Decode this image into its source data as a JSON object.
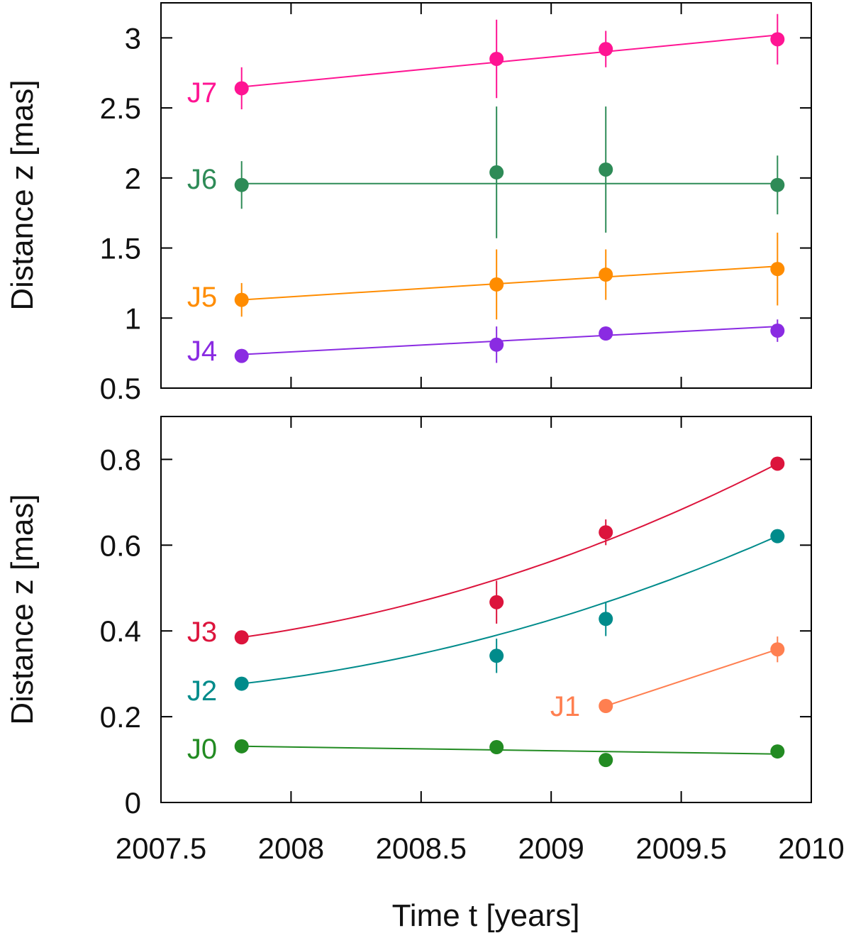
{
  "chart_data": [
    {
      "type": "scatter",
      "panel": "top",
      "xlabel": "",
      "ylabel": "Distance z [mas]",
      "xlim": [
        2007.5,
        2010
      ],
      "ylim": [
        0.5,
        3.25
      ],
      "xticks": [
        2007.5,
        2008,
        2008.5,
        2009,
        2009.5,
        2010
      ],
      "yticks": [
        0.5,
        1,
        1.5,
        2,
        2.5,
        3
      ],
      "ytick_labels": [
        "0.5",
        "1",
        "1.5",
        "2",
        "2.5",
        "3"
      ],
      "series": [
        {
          "name": "J7",
          "color": "#ff1493",
          "x": [
            2007.81,
            2008.79,
            2009.21,
            2009.87
          ],
          "y": [
            2.64,
            2.85,
            2.92,
            2.99
          ],
          "yerr": [
            0.15,
            0.28,
            0.13,
            0.18
          ],
          "fit": {
            "kind": "linear",
            "x0": 2007.81,
            "y0": 2.65,
            "x1": 2009.87,
            "y1": 3.02
          }
        },
        {
          "name": "J6",
          "color": "#2e8b57",
          "x": [
            2007.81,
            2008.79,
            2009.21,
            2009.87
          ],
          "y": [
            1.95,
            2.04,
            2.06,
            1.95
          ],
          "yerr": [
            0.17,
            0.47,
            0.45,
            0.21
          ],
          "fit": {
            "kind": "linear",
            "x0": 2007.81,
            "y0": 1.96,
            "x1": 2009.87,
            "y1": 1.96
          }
        },
        {
          "name": "J5",
          "color": "#ff8c00",
          "x": [
            2007.81,
            2008.79,
            2009.21,
            2009.87
          ],
          "y": [
            1.13,
            1.24,
            1.31,
            1.35
          ],
          "yerr": [
            0.12,
            0.25,
            0.18,
            0.26
          ],
          "fit": {
            "kind": "linear",
            "x0": 2007.81,
            "y0": 1.13,
            "x1": 2009.87,
            "y1": 1.37
          }
        },
        {
          "name": "J4",
          "color": "#8a2be2",
          "x": [
            2007.81,
            2008.79,
            2009.21,
            2009.87
          ],
          "y": [
            0.73,
            0.81,
            0.89,
            0.91
          ],
          "yerr": [
            0.02,
            0.13,
            0.03,
            0.08
          ],
          "fit": {
            "kind": "linear",
            "x0": 2007.81,
            "y0": 0.74,
            "x1": 2009.87,
            "y1": 0.94
          }
        }
      ]
    },
    {
      "type": "scatter",
      "panel": "bottom",
      "xlabel": "Time t [years]",
      "ylabel": "Distance z [mas]",
      "xlim": [
        2007.5,
        2010
      ],
      "ylim": [
        0,
        0.9
      ],
      "xticks": [
        2007.5,
        2008,
        2008.5,
        2009,
        2009.5,
        2010
      ],
      "xtick_labels": [
        "2007.5",
        "2008",
        "2008.5",
        "2009",
        "2009.5",
        "2010"
      ],
      "yticks": [
        0,
        0.2,
        0.4,
        0.6,
        0.8
      ],
      "ytick_labels": [
        "0",
        "0.2",
        "0.4",
        "0.6",
        "0.8"
      ],
      "series": [
        {
          "name": "J3",
          "color": "#dc143c",
          "x": [
            2007.81,
            2008.79,
            2009.21,
            2009.87
          ],
          "y": [
            0.385,
            0.467,
            0.63,
            0.79
          ],
          "yerr": [
            0.01,
            0.05,
            0.03,
            0.01
          ],
          "fit": {
            "kind": "quadratic",
            "x": [
              2007.81,
              2008.79,
              2009.87
            ],
            "y": [
              0.385,
              0.52,
              0.79
            ]
          }
        },
        {
          "name": "J2",
          "color": "#008b8b",
          "x": [
            2007.81,
            2008.79,
            2009.21,
            2009.87
          ],
          "y": [
            0.277,
            0.342,
            0.428,
            0.621
          ],
          "yerr": [
            0.01,
            0.04,
            0.04,
            0.01
          ],
          "fit": {
            "kind": "quadratic",
            "x": [
              2007.81,
              2008.79,
              2009.87
            ],
            "y": [
              0.277,
              0.39,
              0.621
            ]
          }
        },
        {
          "name": "J1",
          "color": "#ff7f50",
          "x": [
            2009.21,
            2009.87
          ],
          "y": [
            0.225,
            0.357
          ],
          "yerr": [
            0.015,
            0.03
          ],
          "fit": {
            "kind": "linear",
            "x0": 2009.21,
            "y0": 0.225,
            "x1": 2009.87,
            "y1": 0.357
          }
        },
        {
          "name": "J0",
          "color": "#228b22",
          "x": [
            2007.81,
            2008.79,
            2009.21,
            2009.87
          ],
          "y": [
            0.131,
            0.129,
            0.099,
            0.119
          ],
          "yerr": [
            0.01,
            0.01,
            0.01,
            0.01
          ],
          "fit": {
            "kind": "linear",
            "x0": 2007.81,
            "y0": 0.131,
            "x1": 2009.87,
            "y1": 0.113
          }
        }
      ]
    }
  ]
}
